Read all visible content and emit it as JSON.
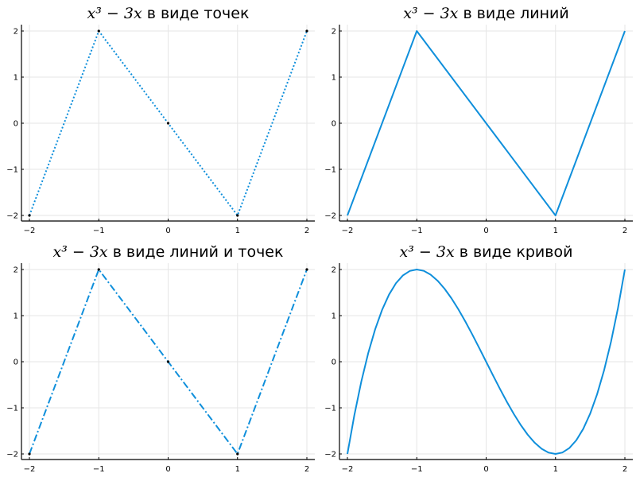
{
  "colors": {
    "series": "#0f8fdb",
    "marker": "#000000"
  },
  "chart_data": [
    {
      "type": "scatter",
      "title_math": "x³ − 3x",
      "title_text": " в виде точек",
      "line_style": "dotted",
      "markers": true,
      "xlim": [
        -2,
        2
      ],
      "ylim": [
        -2,
        2
      ],
      "xticks": [
        "−2",
        "−1",
        "0",
        "1",
        "2"
      ],
      "yticks": [
        "−2",
        "−1",
        "0",
        "1",
        "2"
      ],
      "grid": true,
      "x": [
        -2,
        -1,
        0,
        1,
        2
      ],
      "y": [
        -2,
        2,
        0,
        -2,
        2
      ]
    },
    {
      "type": "line",
      "title_math": "x³ − 3x",
      "title_text": " в виде линий",
      "line_style": "solid",
      "markers": false,
      "xlim": [
        -2,
        2
      ],
      "ylim": [
        -2,
        2
      ],
      "xticks": [
        "−2",
        "−1",
        "0",
        "1",
        "2"
      ],
      "yticks": [
        "−2",
        "−1",
        "0",
        "1",
        "2"
      ],
      "grid": true,
      "x": [
        -2,
        -1,
        0,
        1,
        2
      ],
      "y": [
        -2,
        2,
        0,
        -2,
        2
      ]
    },
    {
      "type": "line",
      "title_math": "x³ − 3x",
      "title_text": " в виде линий и точек",
      "line_style": "dashdot",
      "markers": true,
      "xlim": [
        -2,
        2
      ],
      "ylim": [
        -2,
        2
      ],
      "xticks": [
        "−2",
        "−1",
        "0",
        "1",
        "2"
      ],
      "yticks": [
        "−2",
        "−1",
        "0",
        "1",
        "2"
      ],
      "grid": true,
      "x": [
        -2,
        -1,
        0,
        1,
        2
      ],
      "y": [
        -2,
        2,
        0,
        -2,
        2
      ]
    },
    {
      "type": "line",
      "title_math": "x³ − 3x",
      "title_text": " в виде кривой",
      "line_style": "solid",
      "markers": false,
      "xlim": [
        -2,
        2
      ],
      "ylim": [
        -2,
        2
      ],
      "xticks": [
        "−2",
        "−1",
        "0",
        "1",
        "2"
      ],
      "yticks": [
        "−2",
        "−1",
        "0",
        "1",
        "2"
      ],
      "grid": true,
      "x": [
        -2,
        -1.9,
        -1.8,
        -1.7,
        -1.6,
        -1.5,
        -1.4,
        -1.3,
        -1.2,
        -1.1,
        -1,
        -0.9,
        -0.8,
        -0.7,
        -0.6,
        -0.5,
        -0.4,
        -0.3,
        -0.2,
        -0.1,
        0,
        0.1,
        0.2,
        0.3,
        0.4,
        0.5,
        0.6,
        0.7,
        0.8,
        0.9,
        1,
        1.1,
        1.2,
        1.3,
        1.4,
        1.5,
        1.6,
        1.7,
        1.8,
        1.9,
        2
      ],
      "y": [
        -2,
        -1.159,
        -0.432,
        0.187,
        0.704,
        1.125,
        1.456,
        1.703,
        1.872,
        1.969,
        2,
        1.971,
        1.888,
        1.757,
        1.584,
        1.375,
        1.136,
        0.873,
        0.592,
        0.299,
        0,
        -0.299,
        -0.592,
        -0.873,
        -1.136,
        -1.375,
        -1.584,
        -1.757,
        -1.888,
        -1.971,
        -2,
        -1.969,
        -1.872,
        -1.703,
        -1.456,
        -1.125,
        -0.704,
        -0.187,
        0.432,
        1.159,
        2
      ]
    }
  ]
}
